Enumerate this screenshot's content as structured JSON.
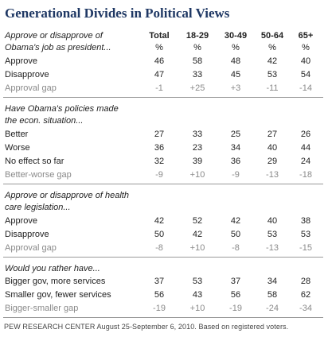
{
  "title": "Generational Divides in Political Views",
  "columns": [
    "Total",
    "18-29",
    "30-49",
    "50-64",
    "65+"
  ],
  "units": [
    "%",
    "%",
    "%",
    "%",
    "%"
  ],
  "sections": [
    {
      "question": [
        "Approve or disapprove of",
        "Obama's job as president..."
      ],
      "rows": [
        {
          "label": "Approve",
          "values": [
            "46",
            "58",
            "48",
            "42",
            "40"
          ]
        },
        {
          "label": "Disapprove",
          "values": [
            "47",
            "33",
            "45",
            "53",
            "54"
          ]
        },
        {
          "label": "Approval gap",
          "values": [
            "-1",
            "+25",
            "+3",
            "-11",
            "-14"
          ]
        }
      ]
    },
    {
      "question": [
        "Have Obama's policies made",
        "the econ. situation..."
      ],
      "rows": [
        {
          "label": "Better",
          "values": [
            "27",
            "33",
            "25",
            "27",
            "26"
          ]
        },
        {
          "label": "Worse",
          "values": [
            "36",
            "23",
            "34",
            "40",
            "44"
          ]
        },
        {
          "label": "No effect so far",
          "values": [
            "32",
            "39",
            "36",
            "29",
            "24"
          ]
        },
        {
          "label": "Better-worse gap",
          "values": [
            "-9",
            "+10",
            "-9",
            "-13",
            "-18"
          ]
        }
      ]
    },
    {
      "question": [
        "Approve or disapprove of health",
        "care legislation..."
      ],
      "rows": [
        {
          "label": "Approve",
          "values": [
            "42",
            "52",
            "42",
            "40",
            "38"
          ]
        },
        {
          "label": "Disapprove",
          "values": [
            "50",
            "42",
            "50",
            "53",
            "53"
          ]
        },
        {
          "label": "Approval gap",
          "values": [
            "-8",
            "+10",
            "-8",
            "-13",
            "-15"
          ]
        }
      ]
    },
    {
      "question": [
        "Would you rather have..."
      ],
      "rows": [
        {
          "label": "Bigger gov, more services",
          "values": [
            "37",
            "53",
            "37",
            "34",
            "28"
          ]
        },
        {
          "label": "Smaller gov, fewer services",
          "values": [
            "56",
            "43",
            "56",
            "58",
            "62"
          ]
        },
        {
          "label": "Bigger-smaller gap",
          "values": [
            "-19",
            "+10",
            "-19",
            "-24",
            "-34"
          ]
        }
      ]
    }
  ],
  "footer": "PEW RESEARCH CENTER August 25-September 6, 2010. Based on registered voters."
}
